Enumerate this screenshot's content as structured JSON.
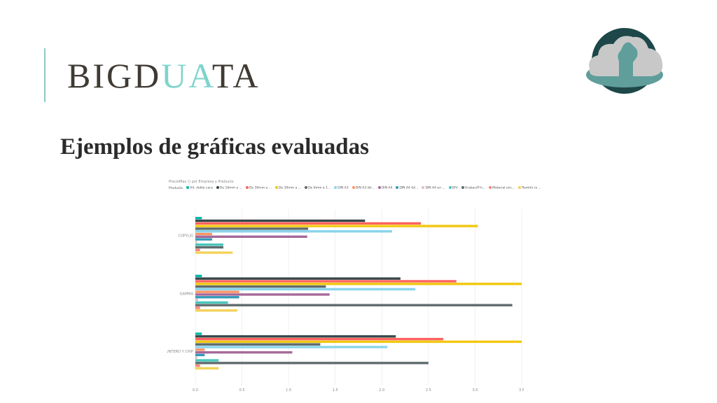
{
  "header": {
    "brand_prefix": "BIGD",
    "brand_highlight": "UA",
    "brand_suffix": "TA"
  },
  "slide": {
    "subtitle": "Ejemplos de gráficas evaluadas"
  },
  "colors": {
    "accent": "#7fd4cc",
    "text": "#3f3a33"
  },
  "logo": {
    "icon": "cloud-with-raised-fist-icon"
  },
  "chart_data": {
    "type": "bar",
    "orientation": "horizontal",
    "title": "PrecioMax () por Empresa y Producto",
    "legend_label": "Producto",
    "legend_placement": "top",
    "categories": [
      "COPYLIG",
      "GAMMA",
      "PUNTERO Y CHIP"
    ],
    "xlim": [
      0,
      3.5
    ],
    "xticks": [
      "0.0",
      "0.5",
      "1.0",
      "1.5",
      "2.0",
      "2.5",
      "3.0",
      "3.5"
    ],
    "grid": true,
    "series": [
      {
        "name": "A4, doble cara",
        "color": "#01b8aa",
        "values": [
          0.07,
          0.07,
          0.07
        ]
      },
      {
        "name": "De 16mm a ...",
        "color": "#374649",
        "values": [
          1.82,
          2.2,
          2.15
        ]
      },
      {
        "name": "De 30mm a ...",
        "color": "#fd625e",
        "values": [
          2.42,
          2.8,
          2.66
        ]
      },
      {
        "name": "De 30mm a ...",
        "color": "#f2c80f",
        "values": [
          3.03,
          3.5,
          3.5
        ]
      },
      {
        "name": "De 6mm a 1...",
        "color": "#5f6b6d",
        "values": [
          1.21,
          1.4,
          1.34
        ]
      },
      {
        "name": "DIN A3",
        "color": "#8ad4eb",
        "values": [
          2.11,
          2.36,
          2.06
        ]
      },
      {
        "name": "DIN A3 (bl...",
        "color": "#fe9666",
        "values": [
          0.18,
          0.47,
          0.1
        ]
      },
      {
        "name": "DIN A4",
        "color": "#a66999",
        "values": [
          1.2,
          1.44,
          1.04
        ]
      },
      {
        "name": "DIN A4 (bl...",
        "color": "#3599b8",
        "values": [
          0.18,
          0.47,
          0.1
        ]
      },
      {
        "name": "DIN A4 en ...",
        "color": "#dfbfbf",
        "values": [
          0.02,
          0.03,
          0.02
        ]
      },
      {
        "name": "DIV",
        "color": "#4ac5bb",
        "values": [
          0.3,
          0.35,
          0.25
        ]
      },
      {
        "name": "GrabaciÃ³n...",
        "color": "#5f6b6d",
        "values": [
          0.3,
          3.4,
          2.5
        ]
      },
      {
        "name": "Material enc...",
        "color": "#fb8281",
        "values": [
          0.05,
          0.05,
          0.05
        ]
      },
      {
        "name": "Remitir (e ...",
        "color": "#f4d25a",
        "values": [
          0.4,
          0.45,
          0.25
        ]
      }
    ]
  }
}
